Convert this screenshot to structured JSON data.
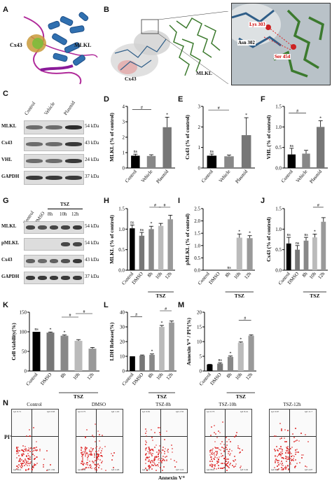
{
  "panels": {
    "A": "A",
    "B": "B",
    "C": "C",
    "D": "D",
    "E": "E",
    "F": "F",
    "G": "G",
    "H": "H",
    "I": "I",
    "J": "J",
    "K": "K",
    "L": "L",
    "M": "M",
    "N": "N"
  },
  "structure": {
    "a_cx43": "Cx43",
    "a_mlkl": "MLKL",
    "b_cx43": "Cx43",
    "b_mlkl": "MLKL",
    "lys": "Lys 303",
    "asn": "Asn 302",
    "ser": "Ser 454"
  },
  "blotC": {
    "cols": [
      "Control",
      "Vehicle",
      "Plasmid"
    ],
    "rows": [
      {
        "name": "MLKL",
        "kda": "54 kDa"
      },
      {
        "name": "Cx43",
        "kda": "43 kDa"
      },
      {
        "name": "VHL",
        "kda": "24 kDa"
      },
      {
        "name": "GAPDH",
        "kda": "37 kDa"
      }
    ]
  },
  "blotG": {
    "cols": [
      "Control",
      "DMSO"
    ],
    "tsz": "TSZ",
    "times": [
      "8h",
      "10h",
      "12h"
    ],
    "rows": [
      {
        "name": "MLKL",
        "kda": "54 kDa"
      },
      {
        "name": "pMLKL",
        "kda": "54 kDa"
      },
      {
        "name": "Cx43",
        "kda": "43 kDa"
      },
      {
        "name": "GAPDH",
        "kda": "37 kDa"
      }
    ]
  },
  "chart_data": [
    {
      "panel": "D",
      "type": "bar",
      "categories": [
        "Control",
        "Vehicle",
        "Plasmid"
      ],
      "values": [
        0.8,
        0.78,
        2.65
      ],
      "errors": [
        0.1,
        0.08,
        0.65
      ],
      "ylabel": "MLKL (% of control)",
      "ylim": [
        0,
        4
      ],
      "ticks": [
        "0",
        "1",
        "2",
        "3",
        "4"
      ],
      "sig": [
        "ns",
        "#",
        "*"
      ]
    },
    {
      "panel": "E",
      "type": "bar",
      "categories": [
        "Control",
        "Vehicle",
        "Plasmid"
      ],
      "values": [
        0.6,
        0.57,
        1.6
      ],
      "errors": [
        0.08,
        0.06,
        0.85
      ],
      "ylabel": "Cx43 (% of control)",
      "ylim": [
        0,
        3
      ],
      "ticks": [
        "0",
        "1",
        "2",
        "3"
      ],
      "sig": [
        "ns",
        "#",
        "*"
      ]
    },
    {
      "panel": "F",
      "type": "bar",
      "categories": [
        "Control",
        "Vehicle",
        "Plasmid"
      ],
      "values": [
        0.33,
        0.35,
        1.0
      ],
      "errors": [
        0.15,
        0.08,
        0.15
      ],
      "ylabel": "VHL (% of control)",
      "ylim": [
        0,
        1.5
      ],
      "ticks": [
        "0.0",
        "0.5",
        "1.0",
        "1.5"
      ],
      "sig": [
        "ns",
        "#",
        "*"
      ]
    },
    {
      "panel": "H",
      "type": "bar",
      "categories": [
        "Control",
        "DMSO",
        "8h",
        "10h",
        "12h"
      ],
      "values": [
        1.02,
        0.84,
        1.0,
        1.08,
        1.24
      ],
      "errors": [
        0.08,
        0.08,
        0.07,
        0.06,
        0.1
      ],
      "ylabel": "MLKL (% of control)",
      "ylim": [
        0,
        1.5
      ],
      "ticks": [
        "0.0",
        "0.5",
        "1.0",
        "1.5"
      ],
      "group": "TSZ",
      "sig": [
        "ns",
        "ns",
        "*",
        "#",
        "#"
      ]
    },
    {
      "panel": "I",
      "type": "bar",
      "categories": [
        "Control",
        "DMSO",
        "8h",
        "10h",
        "12h"
      ],
      "values": [
        0,
        0,
        0,
        1.32,
        1.3
      ],
      "errors": [
        0,
        0,
        0,
        0.15,
        0.1
      ],
      "ylabel": "pMLKL (% of control)",
      "ylim": [
        0,
        2.5
      ],
      "ticks": [
        "0.0",
        "0.5",
        "1.0",
        "1.5",
        "2.0",
        "2.5"
      ],
      "group": "TSZ",
      "sig": [
        "ns",
        "*",
        "*"
      ]
    },
    {
      "panel": "J",
      "type": "bar",
      "categories": [
        "Control",
        "DMSO",
        "8h",
        "10h",
        "12h"
      ],
      "values": [
        0.65,
        0.5,
        0.72,
        0.8,
        1.18
      ],
      "errors": [
        0.15,
        0.1,
        0.08,
        0.08,
        0.1
      ],
      "ylabel": "Cx43 (% of control)",
      "ylim": [
        0,
        1.5
      ],
      "ticks": [
        "0.0",
        "0.5",
        "1.0",
        "1.5"
      ],
      "group": "TSZ",
      "sig": [
        "ns",
        "ns",
        "ns",
        "*",
        "#"
      ]
    },
    {
      "panel": "K",
      "type": "bar",
      "categories": [
        "Control",
        "DMSO",
        "8h",
        "10h",
        "12h"
      ],
      "values": [
        100,
        98,
        90,
        77,
        57
      ],
      "errors": [
        0,
        1.5,
        2,
        3,
        3
      ],
      "ylabel": "Cell viability(%)",
      "ylim": [
        0,
        150
      ],
      "ticks": [
        "0",
        "50",
        "100",
        "150"
      ],
      "group": "TSZ",
      "sig": [
        "ns",
        "*",
        "*",
        "#",
        "#"
      ]
    },
    {
      "panel": "L",
      "type": "bar",
      "categories": [
        "Control",
        "DMSO",
        "8h",
        "10h",
        "12h"
      ],
      "values": [
        10,
        10.5,
        11,
        30,
        33
      ],
      "errors": [
        0,
        0.4,
        0.6,
        1,
        1
      ],
      "ylabel": "LDH Release(%)",
      "ylim": [
        0,
        40
      ],
      "ticks": [
        "0",
        "10",
        "20",
        "30",
        "40"
      ],
      "group": "TSZ",
      "sig": [
        "#",
        "*",
        "*",
        "#"
      ]
    },
    {
      "panel": "M",
      "type": "bar",
      "categories": [
        "Control",
        "DMSO",
        "8h",
        "10h",
        "12h"
      ],
      "values": [
        2.2,
        2.5,
        4.8,
        9.6,
        12.0
      ],
      "errors": [
        0.1,
        0.3,
        0.3,
        0.3,
        0.3
      ],
      "ylabel": "Annexin V⁺ / PI⁺(%)",
      "ylim": [
        0,
        20
      ],
      "ticks": [
        "0",
        "5",
        "10",
        "15",
        "20"
      ],
      "group": "TSZ",
      "sig": [
        "ns",
        "*",
        "*",
        "#"
      ]
    }
  ],
  "flow": {
    "xlabel": "Annexin V⁺",
    "ylabel": "PI⁺",
    "plots": [
      {
        "title": "Control",
        "q": [
          "Q1 0.71",
          "Q2 0.63",
          "Q4 96.4",
          "Q3 1.84"
        ]
      },
      {
        "title": "DMSO",
        "q": [
          "Q1 0.75",
          "Q2 1.10",
          "Q4 95.8",
          "Q3 2.26"
        ]
      },
      {
        "title": "TSZ-8h",
        "q": [
          "Q1 0.81",
          "Q2 2.55",
          "Q4 92.5",
          "Q3 3.16"
        ]
      },
      {
        "title": "TSZ-10h",
        "q": [
          "Q1 0.73",
          "Q2 8.41",
          "Q4 86.8",
          "Q3 5.02"
        ]
      },
      {
        "title": "TSZ-12h",
        "q": [
          "Q1 0.67",
          "Q2 11.7",
          "Q4 84.2",
          "Q3 4.97"
        ]
      }
    ]
  }
}
